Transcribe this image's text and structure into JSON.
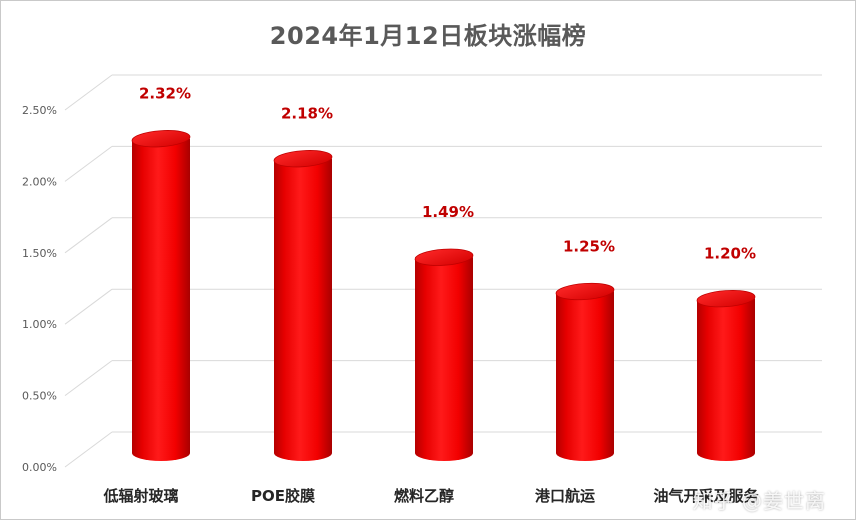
{
  "chart_data": {
    "type": "bar",
    "title": "2024年1月12日板块涨幅榜",
    "categories": [
      "低辐射玻璃",
      "POE胶膜",
      "燃料乙醇",
      "港口航运",
      "油气开采及服务"
    ],
    "values": [
      2.32,
      2.18,
      1.49,
      1.25,
      1.2
    ],
    "value_labels": [
      "2.32%",
      "2.18%",
      "1.49%",
      "1.25%",
      "1.20%"
    ],
    "ylim": [
      0,
      2.5
    ],
    "yticks": [
      "0.00%",
      "0.50%",
      "1.00%",
      "1.50%",
      "2.00%",
      "2.50%"
    ],
    "xlabel": "",
    "ylabel": "",
    "grid": true,
    "bar_color": "#ff0000",
    "label_color": "#c00000"
  },
  "watermark": "知乎 @姜世离"
}
